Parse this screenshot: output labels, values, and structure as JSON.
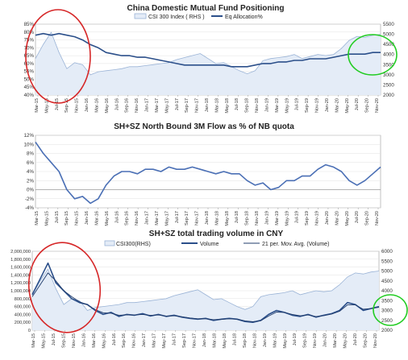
{
  "chart_data": [
    {
      "type": "line",
      "title": "China Domestic Mutual Fund Positioning",
      "x_ticks": [
        "Mar-15",
        "May-15",
        "Jul-15",
        "Sep-15",
        "Nov-15",
        "Jan-16",
        "Mar-16",
        "May-16",
        "Jul-16",
        "Sep-16",
        "Nov-16",
        "Jan-17",
        "Mar-17",
        "May-17",
        "Jul-17",
        "Sep-17",
        "Nov-17",
        "Jan-18",
        "Mar-18",
        "May-18",
        "Jul-18",
        "Sep-18",
        "Nov-18",
        "Jan-19",
        "Mar-19",
        "May-19",
        "Jul-19",
        "Sep-19",
        "Nov-19",
        "Jan-20",
        "Mar-20",
        "May-20",
        "Jul-20",
        "Sep-20",
        "Nov-20"
      ],
      "y_left_ticks": [
        "85%",
        "80%",
        "75%",
        "70%",
        "65%",
        "60%",
        "55%",
        "50%",
        "45%",
        "40%"
      ],
      "y_right_ticks": [
        "5500",
        "5000",
        "4500",
        "4000",
        "3500",
        "3000",
        "2500",
        "2000"
      ],
      "ylim_left": [
        40,
        85
      ],
      "ylim_right": [
        2000,
        5500
      ],
      "legend": [
        "CSI 300 Index ( RHS )",
        "Eq Allocation%"
      ],
      "series": [
        {
          "name": "CSI 300 Index ( RHS )",
          "axis": "right",
          "style": "area",
          "color": "#9ab3d6",
          "fill": "#e4ecf7",
          "values": [
            3800,
            4500,
            5100,
            4100,
            3300,
            3600,
            3500,
            3000,
            3150,
            3200,
            3250,
            3300,
            3400,
            3400,
            3450,
            3500,
            3550,
            3600,
            3750,
            3850,
            3950,
            4050,
            3800,
            3550,
            3600,
            3400,
            3200,
            3050,
            3200,
            3700,
            3800,
            3850,
            3900,
            4000,
            3800,
            3900,
            4000,
            3950,
            4000,
            4300,
            4700,
            4900,
            4850,
            4950,
            5000
          ]
        },
        {
          "name": "Eq Allocation%",
          "axis": "left",
          "style": "line",
          "color": "#2b4f8a",
          "values": [
            78,
            79,
            78,
            79,
            78,
            77,
            75,
            72,
            70,
            67,
            66,
            65,
            65,
            64,
            64,
            63,
            62,
            61,
            60,
            59,
            59,
            59,
            59,
            59,
            59,
            58,
            58,
            58,
            59,
            60,
            60,
            61,
            61,
            62,
            62,
            63,
            63,
            63,
            64,
            65,
            66,
            66,
            66,
            67,
            67
          ]
        }
      ],
      "annotations": [
        {
          "shape": "ellipse",
          "color": "#d62728"
        },
        {
          "shape": "ellipse",
          "color": "#22cc22"
        }
      ]
    },
    {
      "type": "line",
      "title": "SH+SZ North Bound 3M Flow as % of NB quota",
      "x_ticks": [
        "Mar-15",
        "May-15",
        "Jul-15",
        "Sep-15",
        "Nov-15",
        "Jan-16",
        "Mar-16",
        "May-16",
        "Jul-16",
        "Sep-16",
        "Nov-16",
        "Jan-17",
        "Mar-17",
        "May-17",
        "Jul-17",
        "Sep-17",
        "Nov-17",
        "Jan-18",
        "Mar-18",
        "May-18",
        "Jul-18",
        "Sep-18",
        "Nov-18",
        "Jan-19",
        "Mar-19",
        "May-19",
        "Jul-19",
        "Sep-19",
        "Nov-19",
        "Jan-20",
        "Mar-20",
        "May-20",
        "Jul-20",
        "Sep-20",
        "Nov-20"
      ],
      "y_ticks": [
        "12%",
        "10%",
        "8%",
        "6%",
        "4%",
        "2%",
        "0%",
        "-2%",
        "-4%"
      ],
      "ylim": [
        -4,
        12
      ],
      "series": [
        {
          "style": "line",
          "color": "#4a6fb5",
          "values": [
            10.5,
            8,
            6,
            4,
            0,
            -2,
            -1.5,
            -3,
            -2,
            1,
            3,
            4,
            4,
            3.5,
            4.5,
            4.5,
            4,
            5,
            4.5,
            4.5,
            5,
            4.5,
            4,
            3.5,
            4,
            3.5,
            3.5,
            2,
            1,
            1.5,
            0,
            0.5,
            2,
            2,
            3,
            3,
            4.5,
            5.5,
            5,
            4,
            2,
            1,
            2,
            3.5,
            5
          ]
        }
      ]
    },
    {
      "type": "line",
      "title": "SH+SZ total trading volume in CNY",
      "x_ticks": [
        "Mar-15",
        "May-15",
        "Jul-15",
        "Sep-15",
        "Nov-15",
        "Jan-16",
        "Mar-16",
        "May-16",
        "Jul-16",
        "Sep-16",
        "Nov-16",
        "Jan-17",
        "Mar-17",
        "May-17",
        "Jul-17",
        "Sep-17",
        "Nov-17",
        "Jan-18",
        "Mar-18",
        "May-18",
        "Jul-18",
        "Sep-18",
        "Nov-18",
        "Jan-19",
        "Mar-19",
        "May-19",
        "Jul-19",
        "Sep-19",
        "Nov-19",
        "Jan-20",
        "Mar-20",
        "May-20",
        "Jul-20",
        "Sep-20",
        "Nov-20"
      ],
      "y_left_ticks": [
        "2,000,000",
        "1,800,000",
        "1,600,000",
        "1,400,000",
        "1,200,000",
        "1,000,000",
        "800,000",
        "600,000",
        "400,000",
        "200,000",
        "0"
      ],
      "y_right_ticks": [
        "6000",
        "5500",
        "5000",
        "4500",
        "4000",
        "3500",
        "3000",
        "2500",
        "2000"
      ],
      "ylim_left": [
        0,
        2000000
      ],
      "ylim_right": [
        2000,
        6000
      ],
      "legend": [
        "CSI300(RHS)",
        "Volume",
        "21 per. Mov. Avg. (Volume)"
      ],
      "series": [
        {
          "name": "CSI300(RHS)",
          "axis": "right",
          "style": "area",
          "color": "#9ab3d6",
          "fill": "#e4ecf7",
          "values": [
            3800,
            4500,
            5100,
            4100,
            3300,
            3600,
            3500,
            3000,
            3150,
            3200,
            3250,
            3300,
            3400,
            3400,
            3450,
            3500,
            3550,
            3600,
            3750,
            3850,
            3950,
            4050,
            3800,
            3550,
            3600,
            3400,
            3200,
            3050,
            3200,
            3700,
            3800,
            3850,
            3900,
            4000,
            3800,
            3900,
            4000,
            3950,
            4000,
            4300,
            4700,
            4900,
            4850,
            4950,
            5000
          ]
        },
        {
          "name": "Volume",
          "axis": "left",
          "style": "line",
          "color": "#2b4f8a",
          "values": [
            900000,
            1300000,
            1700000,
            1200000,
            1000000,
            800000,
            700000,
            650000,
            500000,
            400000,
            450000,
            350000,
            400000,
            380000,
            420000,
            360000,
            400000,
            350000,
            380000,
            330000,
            300000,
            280000,
            300000,
            250000,
            280000,
            300000,
            280000,
            220000,
            200000,
            250000,
            400000,
            500000,
            450000,
            380000,
            350000,
            400000,
            330000,
            380000,
            420000,
            500000,
            700000,
            650000,
            500000,
            550000,
            600000
          ]
        },
        {
          "name": "21 per. Mov. Avg. (Volume)",
          "axis": "left",
          "style": "line",
          "color": "#1f3b6b",
          "values": [
            850000,
            1150000,
            1450000,
            1250000,
            1000000,
            850000,
            720000,
            640000,
            520000,
            440000,
            430000,
            380000,
            390000,
            385000,
            400000,
            375000,
            385000,
            360000,
            365000,
            340000,
            310000,
            290000,
            290000,
            265000,
            275000,
            290000,
            280000,
            235000,
            215000,
            240000,
            360000,
            460000,
            450000,
            400000,
            365000,
            385000,
            345000,
            370000,
            410000,
            480000,
            640000,
            640000,
            530000,
            550000,
            580000
          ]
        }
      ],
      "annotations": [
        {
          "shape": "ellipse",
          "color": "#d62728"
        },
        {
          "shape": "ellipse",
          "color": "#22cc22"
        }
      ]
    }
  ]
}
